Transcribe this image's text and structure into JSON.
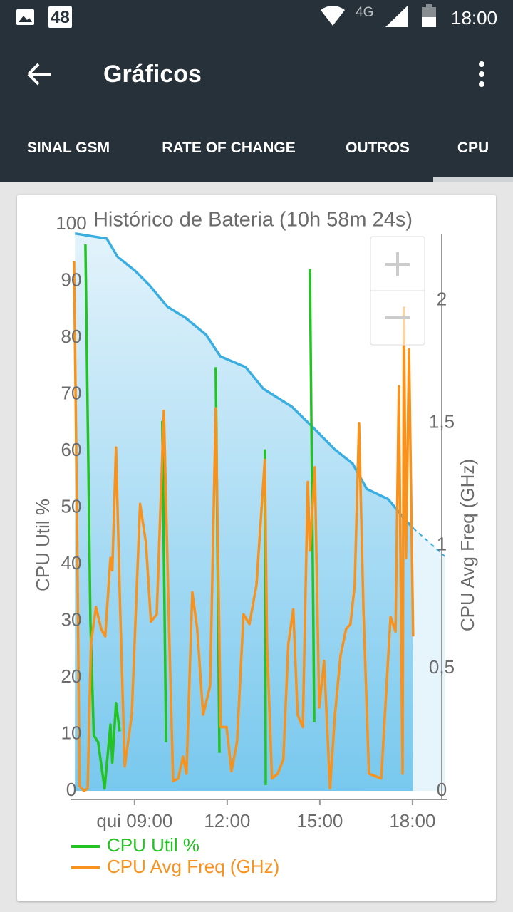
{
  "status_bar": {
    "notification_count": "48",
    "network": "4G",
    "time": "18:00"
  },
  "app_bar": {
    "title": "Gráficos"
  },
  "tabs": [
    "SINAL GSM",
    "RATE OF CHANGE",
    "OUTROS",
    "CPU"
  ],
  "chart_data": {
    "type": "line",
    "title": "Histórico de Bateria (10h 58m 24s)",
    "y_label": "CPU Util %",
    "y2_label": "CPU Avg Freq (GHz)",
    "xlim": [
      6.95,
      19.11
    ],
    "xticks": [
      {
        "value": 9,
        "label": "qui 09:00"
      },
      {
        "value": 12,
        "label": "12:00"
      },
      {
        "value": 15,
        "label": "15:00"
      },
      {
        "value": 18,
        "label": "18:00"
      }
    ],
    "ylim": [
      0,
      100
    ],
    "yticks": [
      0,
      10,
      20,
      30,
      40,
      50,
      60,
      70,
      80,
      90,
      100
    ],
    "y2lim": [
      0,
      2.31
    ],
    "y2ticks": [
      0,
      {
        "value": 0.5,
        "label": "0,5"
      },
      1,
      {
        "value": 1.5,
        "label": "1,5"
      },
      2
    ],
    "series": [
      {
        "color": "#3aaee0",
        "area": true,
        "dashed": false,
        "x": [
          7.07,
          8.1,
          8.45,
          9.02,
          9.48,
          10.06,
          10.63,
          11.32,
          11.78,
          12.6,
          13.17,
          14.1,
          14.79,
          15.48,
          16.06,
          16.52,
          17.21,
          17.79,
          18.02
        ],
        "values": [
          98.4,
          97.5,
          94.3,
          91.8,
          89.3,
          85.5,
          83.6,
          80.5,
          76.7,
          74.8,
          71.0,
          67.8,
          64.1,
          60.3,
          57.8,
          53.3,
          51.5,
          47.7,
          46.4
        ]
      },
      {
        "color": "#3aaee0",
        "area": true,
        "dashed": true,
        "x": [
          18.02,
          19.05
        ],
        "values": [
          46.4,
          41.4
        ]
      },
      {
        "name": "CPU Util %",
        "color": "#22c322",
        "area": false,
        "dashed": false,
        "x": [
          7.41,
          7.57,
          7.68,
          7.82,
          8.03,
          8.22,
          8.28,
          8.4,
          8.52,
          null,
          9.9,
          10.02,
          null,
          11.63,
          11.75,
          null,
          13.22,
          13.25,
          null,
          14.68,
          14.82
        ],
        "values": [
          96.5,
          30.0,
          9.8,
          8.6,
          0.4,
          11.7,
          5.0,
          15.5,
          10.5,
          null,
          65.3,
          8.6,
          null,
          74.8,
          6.7,
          null,
          60.3,
          1.0,
          null,
          92.1,
          12.1
        ]
      },
      {
        "name": "CPU Avg Freq (GHz)",
        "color": "#f7921e",
        "axis": "y2",
        "area": false,
        "dashed": false,
        "x": [
          7.04,
          7.13,
          7.22,
          7.36,
          7.48,
          7.59,
          7.75,
          7.92,
          8.05,
          8.22,
          8.28,
          8.4,
          8.52,
          8.68,
          8.91,
          9.18,
          9.37,
          9.53,
          9.72,
          9.95,
          10.11,
          10.25,
          10.41,
          10.57,
          10.68,
          10.87,
          11.03,
          11.22,
          11.45,
          11.63,
          11.79,
          11.98,
          12.14,
          12.32,
          12.53,
          12.72,
          12.95,
          13.22,
          13.29,
          13.45,
          13.64,
          13.82,
          13.98,
          14.14,
          14.28,
          14.45,
          14.61,
          14.68,
          14.84,
          14.98,
          15.14,
          15.33,
          15.49,
          15.67,
          15.85,
          15.99,
          16.13,
          16.27,
          16.41,
          16.59,
          16.99,
          17.29,
          17.45,
          17.56,
          17.68,
          17.72,
          17.79,
          17.89,
          18.02
        ],
        "values": [
          2.16,
          1.19,
          0.02,
          0.0,
          0.01,
          0.6,
          0.75,
          0.66,
          0.63,
          0.95,
          0.9,
          1.4,
          0.81,
          0.1,
          0.31,
          1.17,
          1.01,
          0.69,
          0.72,
          1.55,
          0.69,
          0.04,
          0.05,
          0.14,
          0.07,
          0.81,
          0.66,
          0.31,
          0.43,
          1.56,
          0.26,
          0.26,
          0.08,
          0.2,
          0.72,
          0.68,
          0.84,
          1.35,
          0.6,
          0.05,
          0.07,
          0.13,
          0.6,
          0.74,
          0.31,
          0.26,
          1.26,
          0.98,
          1.32,
          0.34,
          0.53,
          0.01,
          0.31,
          0.55,
          0.66,
          0.68,
          0.84,
          1.5,
          0.75,
          0.07,
          0.05,
          0.71,
          0.65,
          1.65,
          0.07,
          1.97,
          0.95,
          1.8,
          0.63
        ]
      }
    ]
  }
}
